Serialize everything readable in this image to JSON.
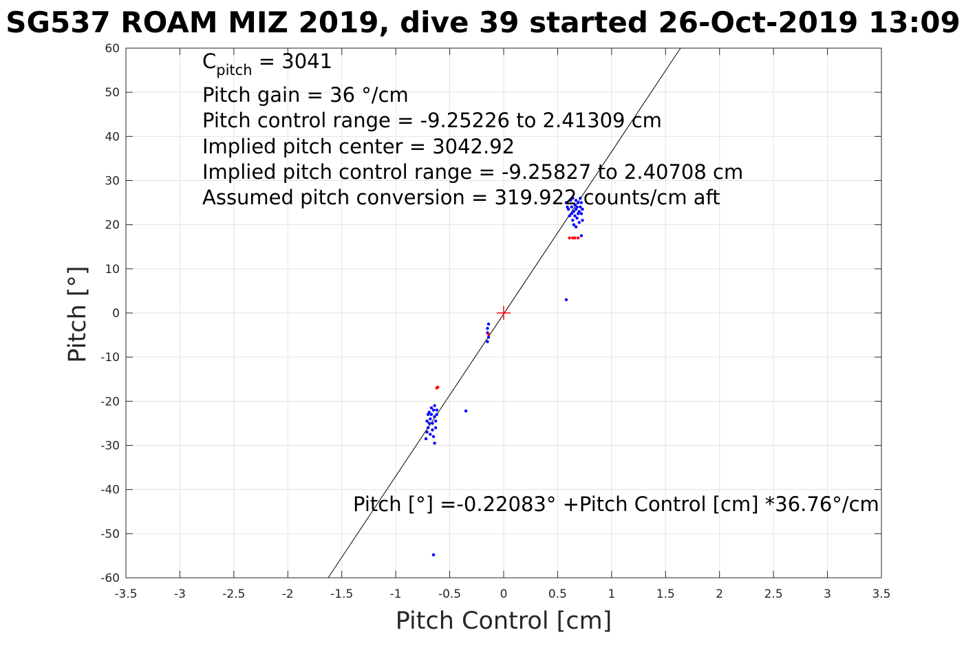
{
  "chart_data": {
    "type": "scatter",
    "title": "SG537 ROAM MIZ 2019, dive 39 started 26-Oct-2019 13:09",
    "xlabel": "Pitch Control [cm]",
    "ylabel": "Pitch [°]",
    "xlim": [
      -3.5,
      3.5
    ],
    "ylim": [
      -60,
      60
    ],
    "xticks": [
      -3.5,
      -3,
      -2.5,
      -2,
      -1.5,
      -1,
      -0.5,
      0,
      0.5,
      1,
      1.5,
      2,
      2.5,
      3,
      3.5
    ],
    "yticks": [
      -60,
      -50,
      -40,
      -30,
      -20,
      -10,
      0,
      10,
      20,
      30,
      40,
      50,
      60
    ],
    "xtick_labels": [
      "-3.5",
      "-3",
      "-2.5",
      "-2",
      "-1.5",
      "-1",
      "-0.5",
      "0",
      "0.5",
      "1",
      "1.5",
      "2",
      "2.5",
      "3",
      "3.5"
    ],
    "ytick_labels": [
      "-60",
      "-50",
      "-40",
      "-30",
      "-20",
      "-10",
      "0",
      "10",
      "20",
      "30",
      "40",
      "50",
      "60"
    ],
    "grid": true,
    "fit_line": {
      "intercept": -0.22083,
      "slope": 36.76,
      "color": "#000000"
    },
    "center_marker": {
      "x": 0,
      "y": 0,
      "color": "#ff0000"
    },
    "series": [
      {
        "color": "#0000ff",
        "points": [
          [
            0.58,
            25
          ],
          [
            0.59,
            24
          ],
          [
            0.6,
            23.5
          ],
          [
            0.61,
            22
          ],
          [
            0.62,
            25.5
          ],
          [
            0.63,
            24
          ],
          [
            0.63,
            22.5
          ],
          [
            0.64,
            21
          ],
          [
            0.64,
            26
          ],
          [
            0.65,
            23
          ],
          [
            0.65,
            20
          ],
          [
            0.66,
            24.5
          ],
          [
            0.66,
            22
          ],
          [
            0.67,
            25.5
          ],
          [
            0.67,
            23.5
          ],
          [
            0.67,
            19.5
          ],
          [
            0.68,
            24
          ],
          [
            0.68,
            21.5
          ],
          [
            0.69,
            22.5
          ],
          [
            0.69,
            25
          ],
          [
            0.7,
            23
          ],
          [
            0.7,
            20.5
          ],
          [
            0.71,
            24
          ],
          [
            0.71,
            26
          ],
          [
            0.72,
            22.5
          ],
          [
            0.72,
            25
          ],
          [
            0.73,
            23.5
          ],
          [
            0.73,
            21
          ],
          [
            0.72,
            17.5
          ],
          [
            0.58,
            3
          ],
          [
            -0.14,
            -2.5
          ],
          [
            -0.15,
            -3.5
          ],
          [
            -0.15,
            -4.5
          ],
          [
            -0.14,
            -5.5
          ],
          [
            -0.15,
            -6.5
          ],
          [
            -0.72,
            -28.5
          ],
          [
            -0.71,
            -27
          ],
          [
            -0.71,
            -24.5
          ],
          [
            -0.7,
            -23
          ],
          [
            -0.7,
            -26
          ],
          [
            -0.69,
            -22.5
          ],
          [
            -0.69,
            -25
          ],
          [
            -0.68,
            -27.5
          ],
          [
            -0.68,
            -24
          ],
          [
            -0.67,
            -21.5
          ],
          [
            -0.67,
            -23
          ],
          [
            -0.66,
            -26.5
          ],
          [
            -0.66,
            -25
          ],
          [
            -0.65,
            -22
          ],
          [
            -0.65,
            -28
          ],
          [
            -0.64,
            -23.5
          ],
          [
            -0.64,
            -21
          ],
          [
            -0.64,
            -29.5
          ],
          [
            -0.63,
            -24.5
          ],
          [
            -0.63,
            -26
          ],
          [
            -0.62,
            -23
          ],
          [
            -0.62,
            -22
          ],
          [
            -0.35,
            -22.2
          ],
          [
            -0.65,
            -54.8
          ]
        ]
      },
      {
        "color": "#ff0000",
        "points": [
          [
            0.61,
            17
          ],
          [
            0.64,
            17
          ],
          [
            0.66,
            17
          ],
          [
            0.69,
            17
          ],
          [
            -0.62,
            -17
          ],
          [
            -0.61,
            -16.8
          ],
          [
            -0.14,
            -4.8
          ]
        ]
      }
    ],
    "annotations": {
      "c_pitch_prefix": "C",
      "c_pitch_sub": "pitch",
      "c_pitch_suffix": " = 3041",
      "pitch_gain": "Pitch gain = 36 °/cm",
      "control_range": "Pitch control range = -9.25226 to 2.41309 cm",
      "implied_center": "Implied pitch center = 3042.92",
      "implied_range": "Implied pitch control range = -9.25827 to 2.40708 cm",
      "assumed_conversion": "Assumed pitch conversion = 319.922 counts/cm aft",
      "fit_equation": "Pitch [°] =-0.22083° +Pitch Control [cm] *36.76°/cm"
    }
  }
}
